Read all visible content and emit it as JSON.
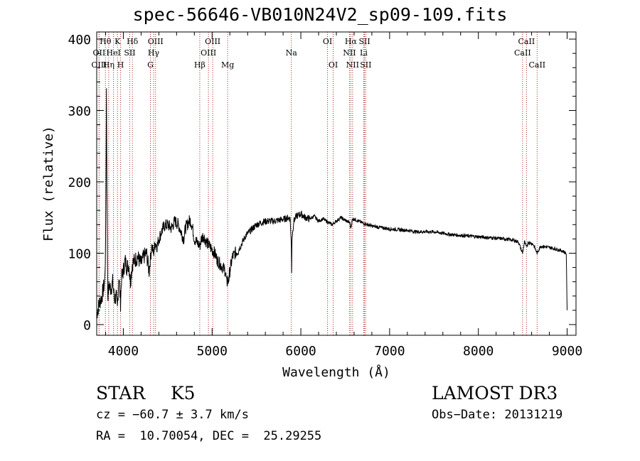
{
  "chart_data": {
    "type": "line",
    "title": "spec-56646-VB010N24V2_sp09-109.fits",
    "xlabel": "Wavelength (Å)",
    "ylabel": "Flux (relative)",
    "xlim": [
      3700,
      9100
    ],
    "ylim": [
      -15,
      410
    ],
    "xticks": [
      4000,
      5000,
      6000,
      7000,
      8000,
      9000
    ],
    "xtick_labels": [
      "4000",
      "5000",
      "6000",
      "7000",
      "8000",
      "9000"
    ],
    "yticks": [
      0,
      100,
      200,
      300,
      400
    ],
    "ytick_labels": [
      "0",
      "100",
      "200",
      "300",
      "400"
    ],
    "line_color": "#000000",
    "marker_color": "#aa2222",
    "spectrum": {
      "x": [
        3700,
        3730,
        3760,
        3790,
        3800,
        3810,
        3815,
        3825,
        3840,
        3860,
        3880,
        3900,
        3920,
        3933,
        3950,
        3968,
        3980,
        4000,
        4020,
        4040,
        4060,
        4080,
        4100,
        4130,
        4160,
        4200,
        4230,
        4260,
        4290,
        4320,
        4340,
        4360,
        4380,
        4400,
        4430,
        4460,
        4500,
        4540,
        4580,
        4620,
        4650,
        4680,
        4700,
        4720,
        4740,
        4760,
        4780,
        4800,
        4830,
        4861,
        4880,
        4900,
        4940,
        4970,
        5000,
        5030,
        5060,
        5090,
        5120,
        5150,
        5167,
        5175,
        5183,
        5200,
        5230,
        5260,
        5300,
        5340,
        5380,
        5420,
        5460,
        5500,
        5540,
        5580,
        5620,
        5660,
        5700,
        5740,
        5780,
        5820,
        5860,
        5880,
        5893,
        5896,
        5900,
        5920,
        5950,
        6000,
        6050,
        6100,
        6150,
        6200,
        6250,
        6300,
        6350,
        6400,
        6450,
        6500,
        6550,
        6563,
        6580,
        6600,
        6650,
        6700,
        6750,
        6800,
        6850,
        6900,
        6950,
        7000,
        7100,
        7200,
        7300,
        7400,
        7500,
        7600,
        7700,
        7800,
        7900,
        8000,
        8100,
        8200,
        8300,
        8400,
        8450,
        8498,
        8520,
        8542,
        8560,
        8600,
        8620,
        8662,
        8700,
        8800,
        8900,
        8950,
        8990,
        9000
      ],
      "y": [
        15,
        30,
        40,
        60,
        110,
        330,
        200,
        40,
        55,
        50,
        60,
        35,
        40,
        20,
        70,
        30,
        65,
        75,
        90,
        80,
        85,
        60,
        85,
        90,
        95,
        85,
        95,
        100,
        75,
        110,
        100,
        115,
        110,
        120,
        130,
        138,
        140,
        135,
        145,
        140,
        130,
        120,
        135,
        140,
        145,
        145,
        135,
        120,
        115,
        110,
        120,
        125,
        115,
        110,
        105,
        100,
        90,
        85,
        80,
        75,
        55,
        65,
        60,
        75,
        95,
        100,
        105,
        115,
        125,
        130,
        135,
        140,
        142,
        144,
        145,
        145,
        145,
        146,
        147,
        148,
        150,
        148,
        110,
        75,
        120,
        145,
        152,
        155,
        150,
        148,
        152,
        145,
        148,
        144,
        140,
        145,
        150,
        146,
        143,
        135,
        147,
        148,
        145,
        142,
        140,
        138,
        137,
        136,
        135,
        134,
        133,
        132,
        130,
        130,
        130,
        128,
        126,
        125,
        124,
        123,
        122,
        121,
        120,
        118,
        116,
        100,
        116,
        108,
        115,
        114,
        112,
        100,
        110,
        108,
        105,
        103,
        100,
        20
      ]
    },
    "lines": [
      {
        "label": "Hθ",
        "wl": 3798,
        "row": 1
      },
      {
        "label": "OII",
        "wl": 3727,
        "row": 2
      },
      {
        "label": "OIII",
        "wl": 3727,
        "row": 3
      },
      {
        "label": "K",
        "wl": 3934,
        "row": 1
      },
      {
        "label": "HeI",
        "wl": 3889,
        "row": 2
      },
      {
        "label": "Hη",
        "wl": 3835,
        "row": 3
      },
      {
        "label": "Hδ",
        "wl": 4102,
        "row": 1
      },
      {
        "label": "SII",
        "wl": 4072,
        "row": 2
      },
      {
        "label": "H",
        "wl": 3969,
        "row": 3
      },
      {
        "label": "OIII",
        "wl": 4363,
        "row": 1
      },
      {
        "label": "Hγ",
        "wl": 4341,
        "row": 2
      },
      {
        "label": "G",
        "wl": 4305,
        "row": 3
      },
      {
        "label": "OIII",
        "wl": 5007,
        "row": 1
      },
      {
        "label": "OIII",
        "wl": 4959,
        "row": 2
      },
      {
        "label": "Hβ",
        "wl": 4861,
        "row": 3
      },
      {
        "label": "Mg",
        "wl": 5175,
        "row": 3
      },
      {
        "label": "Na",
        "wl": 5893,
        "row": 2
      },
      {
        "label": "OI",
        "wl": 6300,
        "row": 1
      },
      {
        "label": "OI",
        "wl": 6364,
        "row": 3
      },
      {
        "label": "Hα",
        "wl": 6563,
        "row": 1
      },
      {
        "label": "SII",
        "wl": 6717,
        "row": 1
      },
      {
        "label": "NII",
        "wl": 6548,
        "row": 2
      },
      {
        "label": "Li",
        "wl": 6708,
        "row": 2
      },
      {
        "label": "NII",
        "wl": 6583,
        "row": 3
      },
      {
        "label": "SII",
        "wl": 6731,
        "row": 3
      },
      {
        "label": "CaII",
        "wl": 8542,
        "row": 1
      },
      {
        "label": "CaII",
        "wl": 8498,
        "row": 2
      },
      {
        "label": "CaII",
        "wl": 8662,
        "row": 3
      }
    ]
  },
  "info": {
    "object_class": "STAR",
    "subclass": "K5",
    "survey": "LAMOST DR3",
    "cz": "cz = −60.7 ± 3.7 km/s",
    "obs_date": "Obs−Date: 20131219",
    "coords": "RA =  10.70054, DEC =  25.29255"
  }
}
